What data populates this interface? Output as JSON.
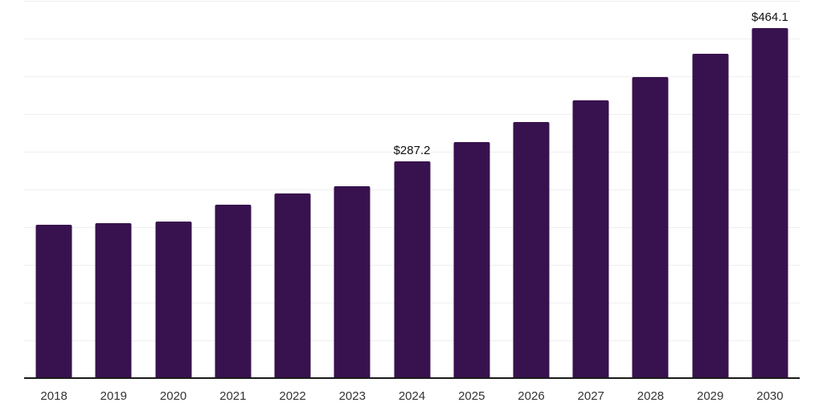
{
  "chart_data": {
    "type": "bar",
    "title": "",
    "xlabel": "",
    "ylabel": "",
    "categories": [
      "2018",
      "2019",
      "2020",
      "2021",
      "2022",
      "2023",
      "2024",
      "2025",
      "2026",
      "2027",
      "2028",
      "2029",
      "2030"
    ],
    "values": [
      203.2,
      205.3,
      207.4,
      230.3,
      245.2,
      254.3,
      287.2,
      312.8,
      339.9,
      368.1,
      398.9,
      430.3,
      464.1
    ],
    "data_labels": [
      {
        "category": "2024",
        "text": "$287.2"
      },
      {
        "category": "2030",
        "text": "$464.1"
      }
    ],
    "ylim": [
      0,
      500
    ],
    "gridline_interval": 50,
    "grid": true,
    "legend": false,
    "y_axis_tick_labels_visible": false,
    "colors": {
      "bar": "#38124E",
      "gridline": "#efefef",
      "axis": "#1a1a1a",
      "tick_label": "#333333",
      "data_label": "#111111"
    }
  }
}
